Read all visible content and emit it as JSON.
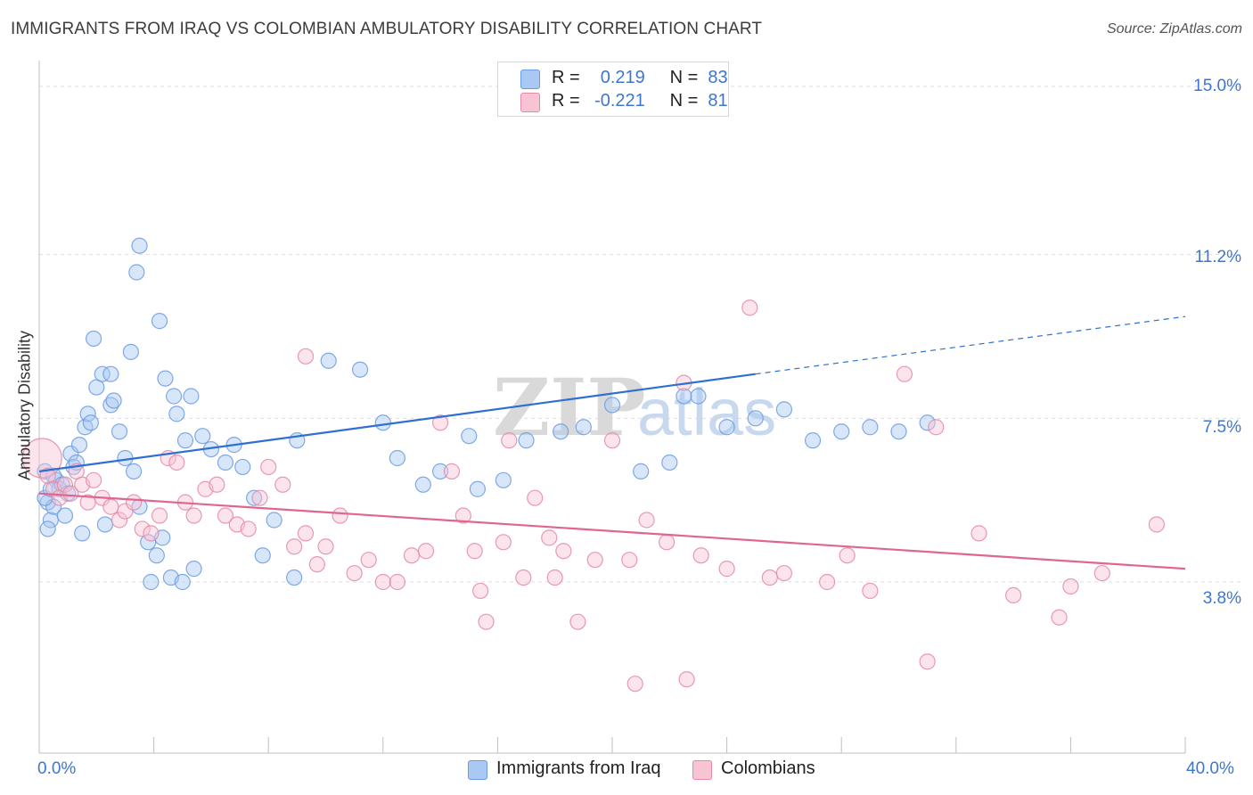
{
  "title": "IMMIGRANTS FROM IRAQ VS COLOMBIAN AMBULATORY DISABILITY CORRELATION CHART",
  "source": "Source: ZipAtlas.com",
  "watermark": {
    "zip": "ZIP",
    "atlas": "atlas"
  },
  "legend_stats": [
    {
      "r_label": "R =",
      "r_value": "0.219",
      "n_label": "N =",
      "n_value": "83",
      "color": "#a9c8f4",
      "border": "#6b9be0"
    },
    {
      "r_label": "R =",
      "r_value": "-0.221",
      "n_label": "N =",
      "n_value": "81",
      "color": "#f8c4d4",
      "border": "#e38aa6"
    }
  ],
  "chart_data": {
    "type": "scatter",
    "title": "IMMIGRANTS FROM IRAQ VS COLOMBIAN AMBULATORY DISABILITY CORRELATION CHART",
    "xlabel": "",
    "ylabel": "Ambulatory Disability",
    "xlim": [
      0,
      40
    ],
    "ylim": [
      0,
      15.7
    ],
    "x_tick_labels": [
      "0.0%",
      "40.0%"
    ],
    "y_ticks": [
      3.8,
      7.5,
      11.2,
      15.0
    ],
    "y_tick_labels": [
      "3.8%",
      "7.5%",
      "11.2%",
      "15.0%"
    ],
    "grid": true,
    "series": [
      {
        "name": "Immigrants from Iraq",
        "color": "#6b9be0",
        "fill": "#a9c8f4",
        "trend": {
          "x0": 0,
          "y0": 6.3,
          "x1": 25,
          "y1": 8.5,
          "dash_to_x": 40,
          "dash_to_y": 9.8,
          "color": "#2e6fd4"
        },
        "points": [
          [
            0.2,
            6.3
          ],
          [
            0.3,
            5.6
          ],
          [
            0.4,
            5.2
          ],
          [
            0.5,
            5.5
          ],
          [
            0.6,
            6.1
          ],
          [
            0.7,
            5.9
          ],
          [
            0.2,
            5.7
          ],
          [
            0.4,
            5.9
          ],
          [
            0.9,
            5.3
          ],
          [
            0.3,
            5.0
          ],
          [
            0.5,
            6.2
          ],
          [
            1.1,
            6.7
          ],
          [
            1.2,
            6.4
          ],
          [
            1.4,
            6.9
          ],
          [
            1.6,
            7.3
          ],
          [
            1.7,
            7.6
          ],
          [
            0.8,
            6.0
          ],
          [
            1.0,
            5.8
          ],
          [
            1.3,
            6.5
          ],
          [
            1.8,
            7.4
          ],
          [
            2.0,
            8.2
          ],
          [
            2.2,
            8.5
          ],
          [
            2.5,
            7.8
          ],
          [
            2.6,
            7.9
          ],
          [
            2.8,
            7.2
          ],
          [
            3.0,
            6.6
          ],
          [
            3.3,
            6.3
          ],
          [
            3.5,
            5.5
          ],
          [
            3.8,
            4.7
          ],
          [
            4.1,
            4.4
          ],
          [
            4.3,
            4.8
          ],
          [
            4.6,
            3.9
          ],
          [
            5.0,
            3.8
          ],
          [
            5.4,
            4.1
          ],
          [
            1.9,
            9.3
          ],
          [
            2.5,
            8.5
          ],
          [
            3.2,
            9.0
          ],
          [
            3.5,
            11.4
          ],
          [
            3.4,
            10.8
          ],
          [
            4.2,
            9.7
          ],
          [
            4.4,
            8.4
          ],
          [
            4.7,
            8.0
          ],
          [
            4.8,
            7.6
          ],
          [
            5.3,
            8.0
          ],
          [
            5.1,
            7.0
          ],
          [
            5.7,
            7.1
          ],
          [
            6.0,
            6.8
          ],
          [
            6.5,
            6.5
          ],
          [
            6.8,
            6.9
          ],
          [
            7.1,
            6.4
          ],
          [
            7.5,
            5.7
          ],
          [
            7.8,
            4.4
          ],
          [
            8.2,
            5.2
          ],
          [
            9.0,
            7.0
          ],
          [
            10.1,
            8.8
          ],
          [
            11.2,
            8.6
          ],
          [
            12.0,
            7.4
          ],
          [
            12.5,
            6.6
          ],
          [
            13.4,
            6.0
          ],
          [
            14.0,
            6.3
          ],
          [
            15.0,
            7.1
          ],
          [
            15.3,
            5.9
          ],
          [
            16.2,
            6.1
          ],
          [
            17.0,
            7.0
          ],
          [
            18.2,
            7.2
          ],
          [
            19.0,
            7.3
          ],
          [
            20.0,
            7.8
          ],
          [
            21.0,
            6.3
          ],
          [
            22.0,
            6.5
          ],
          [
            23.0,
            8.0
          ],
          [
            24.0,
            7.3
          ],
          [
            25.0,
            7.5
          ],
          [
            26.0,
            7.7
          ],
          [
            27.0,
            7.0
          ],
          [
            28.0,
            7.2
          ],
          [
            29.0,
            7.3
          ],
          [
            30.0,
            7.2
          ],
          [
            31.0,
            7.4
          ],
          [
            22.5,
            8.0
          ],
          [
            8.9,
            3.9
          ],
          [
            1.5,
            4.9
          ],
          [
            2.3,
            5.1
          ],
          [
            3.9,
            3.8
          ]
        ]
      },
      {
        "name": "Colombians",
        "color": "#e38aa6",
        "fill": "#f8c4d4",
        "trend": {
          "x0": 0,
          "y0": 5.8,
          "x1": 40,
          "y1": 4.1,
          "color": "#e0668f"
        },
        "points": [
          [
            0.1,
            6.6
          ],
          [
            0.3,
            6.2
          ],
          [
            0.5,
            5.9
          ],
          [
            0.7,
            5.7
          ],
          [
            0.9,
            6.0
          ],
          [
            1.1,
            5.8
          ],
          [
            1.3,
            6.3
          ],
          [
            1.5,
            6.0
          ],
          [
            1.7,
            5.6
          ],
          [
            1.9,
            6.1
          ],
          [
            2.2,
            5.7
          ],
          [
            2.5,
            5.5
          ],
          [
            2.8,
            5.2
          ],
          [
            3.0,
            5.4
          ],
          [
            3.3,
            5.6
          ],
          [
            3.6,
            5.0
          ],
          [
            3.9,
            4.9
          ],
          [
            4.2,
            5.3
          ],
          [
            4.5,
            6.6
          ],
          [
            4.8,
            6.5
          ],
          [
            5.1,
            5.6
          ],
          [
            5.4,
            5.3
          ],
          [
            5.8,
            5.9
          ],
          [
            6.2,
            6.0
          ],
          [
            6.5,
            5.3
          ],
          [
            6.9,
            5.1
          ],
          [
            7.3,
            5.0
          ],
          [
            7.7,
            5.7
          ],
          [
            8.0,
            6.4
          ],
          [
            8.5,
            6.0
          ],
          [
            8.9,
            4.6
          ],
          [
            9.3,
            4.9
          ],
          [
            9.7,
            4.2
          ],
          [
            10.0,
            4.6
          ],
          [
            10.5,
            5.3
          ],
          [
            11.0,
            4.0
          ],
          [
            11.5,
            4.3
          ],
          [
            12.0,
            3.8
          ],
          [
            12.5,
            3.8
          ],
          [
            13.0,
            4.4
          ],
          [
            13.5,
            4.5
          ],
          [
            14.0,
            7.4
          ],
          [
            14.4,
            6.3
          ],
          [
            14.8,
            5.3
          ],
          [
            15.2,
            4.5
          ],
          [
            15.6,
            2.9
          ],
          [
            16.2,
            4.7
          ],
          [
            16.9,
            3.9
          ],
          [
            17.3,
            5.7
          ],
          [
            17.8,
            4.8
          ],
          [
            18.3,
            4.5
          ],
          [
            18.8,
            2.9
          ],
          [
            19.4,
            4.3
          ],
          [
            20.0,
            7.0
          ],
          [
            20.6,
            4.3
          ],
          [
            21.2,
            5.2
          ],
          [
            21.9,
            4.7
          ],
          [
            22.5,
            8.3
          ],
          [
            23.1,
            4.4
          ],
          [
            24.0,
            4.1
          ],
          [
            24.8,
            10.0
          ],
          [
            26.0,
            4.0
          ],
          [
            27.5,
            3.8
          ],
          [
            29.0,
            3.6
          ],
          [
            30.2,
            8.5
          ],
          [
            31.3,
            7.3
          ],
          [
            32.8,
            4.9
          ],
          [
            34.0,
            3.5
          ],
          [
            35.6,
            3.0
          ],
          [
            37.1,
            4.0
          ],
          [
            39.0,
            5.1
          ],
          [
            22.6,
            1.6
          ],
          [
            20.8,
            1.5
          ],
          [
            9.3,
            8.9
          ],
          [
            15.4,
            3.6
          ],
          [
            25.5,
            3.9
          ],
          [
            28.2,
            4.4
          ],
          [
            31.0,
            2.0
          ],
          [
            16.4,
            7.0
          ],
          [
            18.0,
            3.9
          ],
          [
            36.0,
            3.7
          ]
        ]
      }
    ]
  },
  "legend_bottom": [
    {
      "label": "Immigrants from Iraq",
      "color": "#a9c8f4",
      "border": "#6b9be0"
    },
    {
      "label": "Colombians",
      "color": "#f8c4d4",
      "border": "#e38aa6"
    }
  ]
}
